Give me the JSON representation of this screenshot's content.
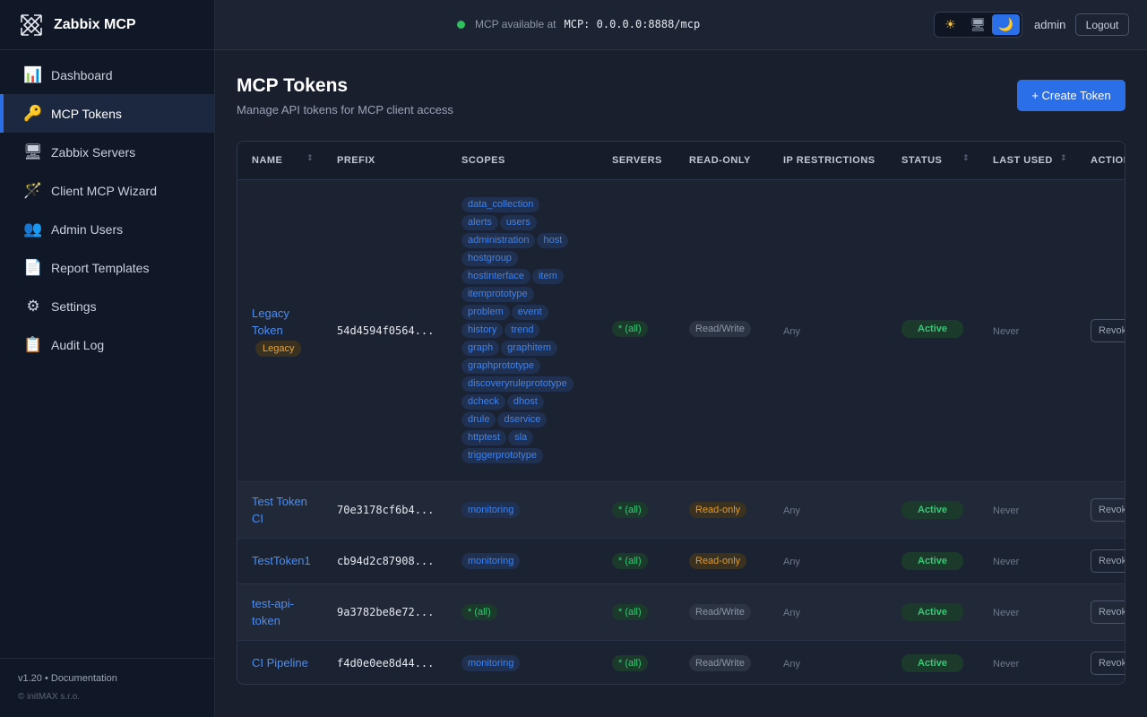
{
  "brand": {
    "name": "Zabbix MCP"
  },
  "sidebar": {
    "items": [
      {
        "label": "Dashboard",
        "icon": "📊"
      },
      {
        "label": "MCP Tokens",
        "icon": "🔑",
        "active": true
      },
      {
        "label": "Zabbix Servers",
        "icon": "🖥"
      },
      {
        "label": "Client MCP Wizard",
        "icon": "🪄"
      },
      {
        "label": "Admin Users",
        "icon": "👥"
      },
      {
        "label": "Report Templates",
        "icon": "📄"
      },
      {
        "label": "Settings",
        "icon": "⚙"
      },
      {
        "label": "Audit Log",
        "icon": "📋"
      }
    ],
    "footer": {
      "version": "v1.20 • Documentation",
      "copyright": "© initMAX s.r.o."
    }
  },
  "topbar": {
    "status_text": "MCP available at",
    "mcp_url": "MCP: 0.0.0.0:8888/mcp",
    "theme": {
      "light": "☀",
      "system": "🖥",
      "dark": "🌙",
      "selected": "dark"
    },
    "user": "admin",
    "logout_label": "Logout"
  },
  "page": {
    "title": "MCP Tokens",
    "subtitle": "Manage API tokens for MCP client access",
    "create_label": "+ Create Token"
  },
  "table": {
    "columns": [
      "NAME",
      "PREFIX",
      "SCOPES",
      "SERVERS",
      "READ-ONLY",
      "IP RESTRICTIONS",
      "STATUS",
      "LAST USED",
      "ACTIONS"
    ],
    "rows": [
      {
        "name": "Legacy Token",
        "badge": "Legacy",
        "prefix": "54d4594f0564...",
        "scopes": [
          "data_collection",
          "alerts",
          "users",
          "administration",
          "host",
          "hostgroup",
          "hostinterface",
          "item",
          "itemprototype",
          "problem",
          "event",
          "history",
          "trend",
          "graph",
          "graphitem",
          "graphprototype",
          "discoveryruleprototype",
          "dcheck",
          "dhost",
          "drule",
          "dservice",
          "httptest",
          "sla",
          "triggerprototype"
        ],
        "servers": "* (all)",
        "read_only": "Read/Write",
        "ip": "Any",
        "status": "Active",
        "last_used": "Never",
        "action": "Revoke"
      },
      {
        "name": "Test Token CI",
        "prefix": "70e3178cf6b4...",
        "scopes": [
          "monitoring"
        ],
        "servers": "* (all)",
        "read_only": "Read-only",
        "ip": "Any",
        "status": "Active",
        "last_used": "Never",
        "action": "Revoke"
      },
      {
        "name": "TestToken1",
        "prefix": "cb94d2c87908...",
        "scopes": [
          "monitoring"
        ],
        "servers": "* (all)",
        "read_only": "Read-only",
        "ip": "Any",
        "status": "Active",
        "last_used": "Never",
        "action": "Revoke"
      },
      {
        "name": "test-api-token",
        "prefix": "9a3782be8e72...",
        "scopes_all": "* (all)",
        "servers": "* (all)",
        "read_only": "Read/Write",
        "ip": "Any",
        "status": "Active",
        "last_used": "Never",
        "action": "Revoke"
      },
      {
        "name": "CI Pipeline",
        "prefix": "f4d0e0ee8d44...",
        "scopes": [
          "monitoring"
        ],
        "servers": "* (all)",
        "read_only": "Read/Write",
        "ip": "Any",
        "status": "Active",
        "last_used": "Never",
        "action": "Revoke"
      }
    ]
  }
}
